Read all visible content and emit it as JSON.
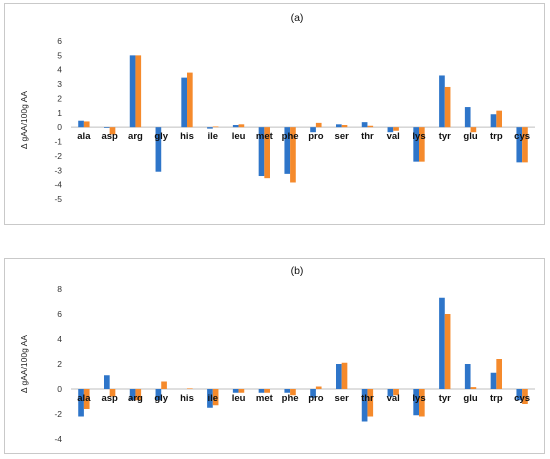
{
  "chart_data": [
    {
      "type": "bar",
      "title": "(a)",
      "ylabel": "Δ gAA/100g AA",
      "ylim": [
        -5,
        6
      ],
      "yticks": [
        -5,
        -4,
        -3,
        -2,
        -1,
        0,
        1,
        2,
        3,
        4,
        5,
        6
      ],
      "grid": false,
      "legend": "none",
      "categories": [
        "ala",
        "asp",
        "arg",
        "gly",
        "his",
        "ile",
        "leu",
        "met",
        "phe",
        "pro",
        "ser",
        "thr",
        "val",
        "lys",
        "tyr",
        "glu",
        "trp",
        "cys"
      ],
      "series": [
        {
          "color": "#2e75c9",
          "values": [
            0.45,
            -0.05,
            5.0,
            -3.1,
            3.45,
            -0.1,
            0.15,
            -3.4,
            -3.25,
            -0.35,
            0.2,
            0.35,
            -0.35,
            -2.4,
            3.6,
            1.4,
            0.9,
            -2.45
          ]
        },
        {
          "color": "#f58a2c",
          "values": [
            0.4,
            -0.5,
            5.0,
            0.0,
            3.8,
            0.05,
            0.2,
            -3.55,
            -3.85,
            0.3,
            0.15,
            0.1,
            -0.25,
            -2.4,
            2.8,
            -0.35,
            1.15,
            -2.45
          ]
        }
      ]
    },
    {
      "type": "bar",
      "title": "(b)",
      "ylabel": "Δ gAA/100g AA",
      "ylim": [
        -4,
        8
      ],
      "yticks": [
        -4,
        -2,
        0,
        2,
        4,
        6,
        8
      ],
      "grid": false,
      "legend": "none",
      "categories": [
        "ala",
        "asp",
        "arg",
        "gly",
        "his",
        "ile",
        "leu",
        "met",
        "phe",
        "pro",
        "ser",
        "thr",
        "val",
        "lys",
        "tyr",
        "glu",
        "trp",
        "cys"
      ],
      "series": [
        {
          "color": "#2e75c9",
          "values": [
            -2.2,
            1.1,
            -0.9,
            -0.9,
            0.0,
            -1.5,
            -0.3,
            -0.3,
            -0.3,
            -0.7,
            2.0,
            -2.6,
            -0.6,
            -2.1,
            7.3,
            2.0,
            1.3,
            -0.9
          ]
        },
        {
          "color": "#f58a2c",
          "values": [
            -1.6,
            -0.6,
            -0.9,
            0.6,
            0.05,
            -1.3,
            -0.3,
            -0.3,
            -0.5,
            0.2,
            2.1,
            -2.2,
            -0.5,
            -2.2,
            6.0,
            0.15,
            2.4,
            -1.2
          ]
        }
      ]
    }
  ]
}
